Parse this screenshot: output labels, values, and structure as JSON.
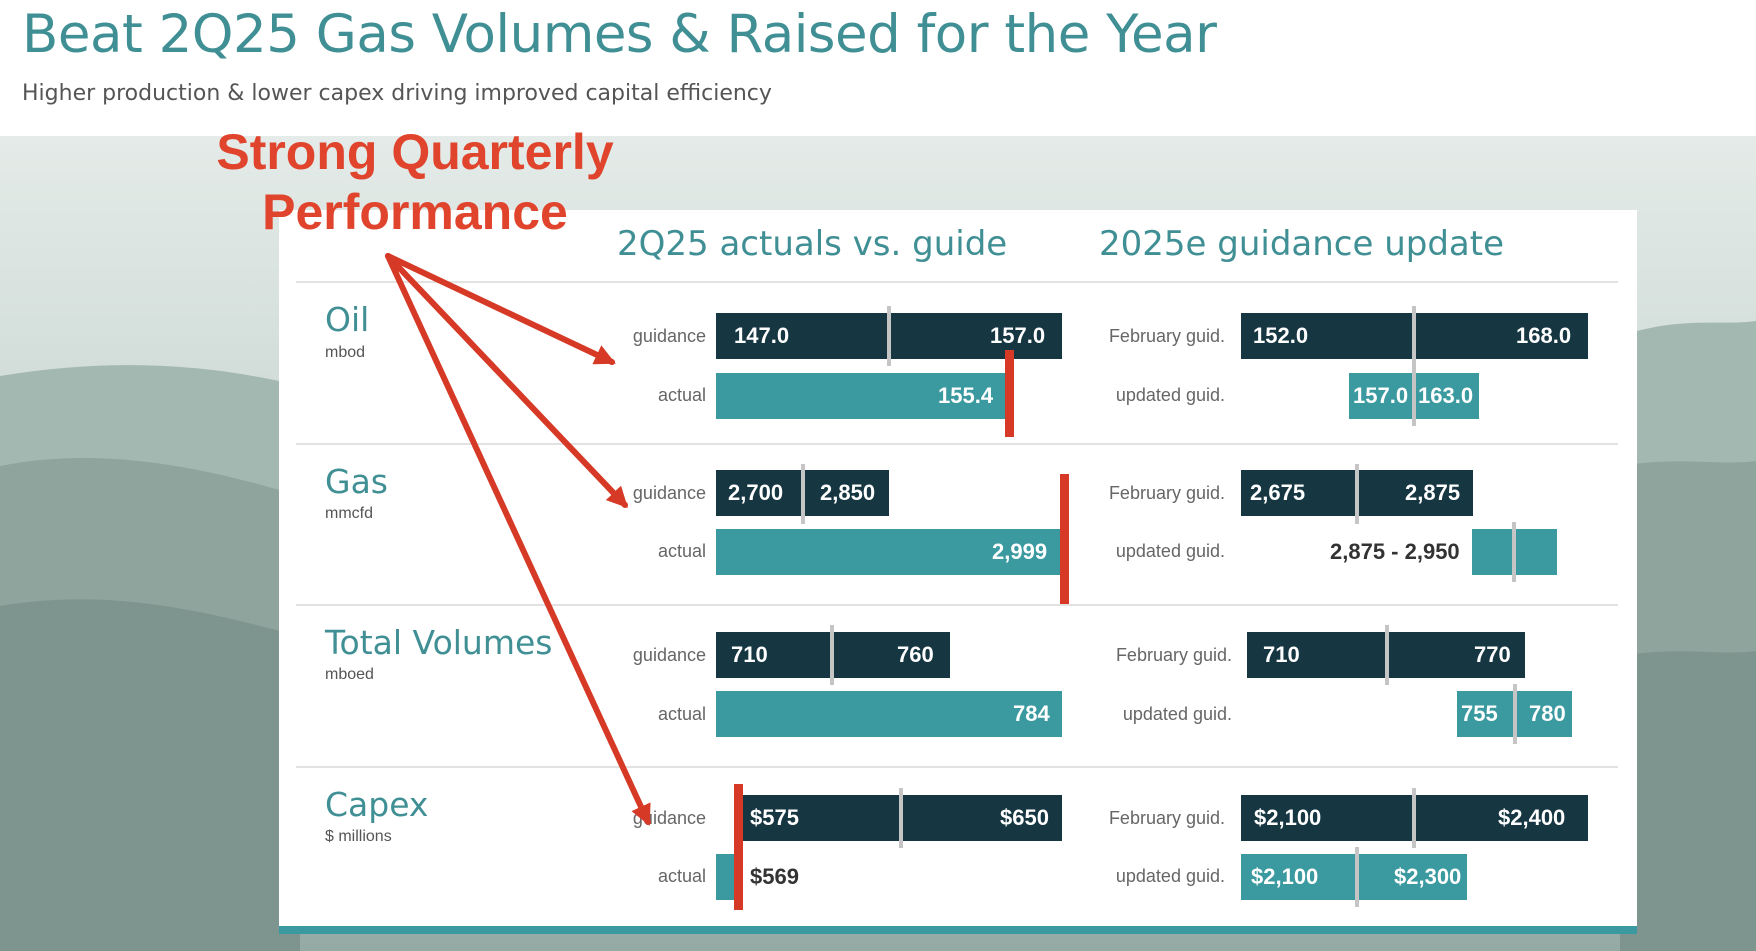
{
  "header": {
    "title": "Beat 2Q25 Gas Volumes & Raised for the Year",
    "subtitle": "Higher production & lower capex driving improved capital efficiency"
  },
  "annotation": {
    "line1": "Strong Quarterly",
    "line2": "Performance"
  },
  "columns": {
    "left": "2Q25 actuals vs. guide",
    "right": "2025e guidance update"
  },
  "row_labels": {
    "guidance": "guidance",
    "actual": "actual",
    "february": "February guid.",
    "updated": "updated guid."
  },
  "metrics": [
    {
      "name": "Oil",
      "unit": "mbod"
    },
    {
      "name": "Gas",
      "unit": "mmcfd"
    },
    {
      "name": "Total Volumes",
      "unit": "mboed"
    },
    {
      "name": "Capex",
      "unit": "$ millions"
    }
  ],
  "bar_text": {
    "oil": {
      "guid_low": "147.0",
      "guid_high": "157.0",
      "actual": "155.4",
      "feb_low": "152.0",
      "feb_high": "168.0",
      "upd_low": "157.0",
      "upd_high": "163.0"
    },
    "gas": {
      "guid_low": "2,700",
      "guid_high": "2,850",
      "actual": "2,999",
      "feb_low": "2,675",
      "feb_high": "2,875",
      "upd_range": "2,875 - 2,950"
    },
    "total": {
      "guid_low": "710",
      "guid_high": "760",
      "actual": "784",
      "feb_low": "710",
      "feb_high": "770",
      "upd_low": "755",
      "upd_high": "780"
    },
    "capex": {
      "guid_low": "$575",
      "guid_high": "$650",
      "actual": "$569",
      "feb_low": "$2,100",
      "feb_high": "$2,400",
      "upd_low": "$2,100",
      "upd_high": "$2,300"
    }
  },
  "colors": {
    "dark_bar": "#163642",
    "teal_bar": "#3a9aa0",
    "accent_text": "#3f8f94",
    "annotation_red": "#e0442d"
  },
  "chart_data": [
    {
      "type": "bar",
      "title": "2Q25 actuals vs. guide",
      "categories": [
        "Oil",
        "Gas",
        "Total Volumes",
        "Capex"
      ],
      "units": [
        "mbod",
        "mmcfd",
        "mboed",
        "$ millions"
      ],
      "series": [
        {
          "name": "guidance",
          "low": [
            147.0,
            2700,
            710,
            575
          ],
          "high": [
            157.0,
            2850,
            760,
            650
          ]
        },
        {
          "name": "actual",
          "values": [
            155.4,
            2999,
            784,
            569
          ]
        }
      ]
    },
    {
      "type": "bar",
      "title": "2025e guidance update",
      "categories": [
        "Oil",
        "Gas",
        "Total Volumes",
        "Capex"
      ],
      "units": [
        "mbod",
        "mmcfd",
        "mboed",
        "$ millions"
      ],
      "series": [
        {
          "name": "February guid.",
          "low": [
            152.0,
            2675,
            710,
            2100
          ],
          "high": [
            168.0,
            2875,
            770,
            2400
          ]
        },
        {
          "name": "updated guid.",
          "low": [
            157.0,
            2875,
            755,
            2100
          ],
          "high": [
            163.0,
            2950,
            780,
            2300
          ]
        }
      ]
    }
  ]
}
